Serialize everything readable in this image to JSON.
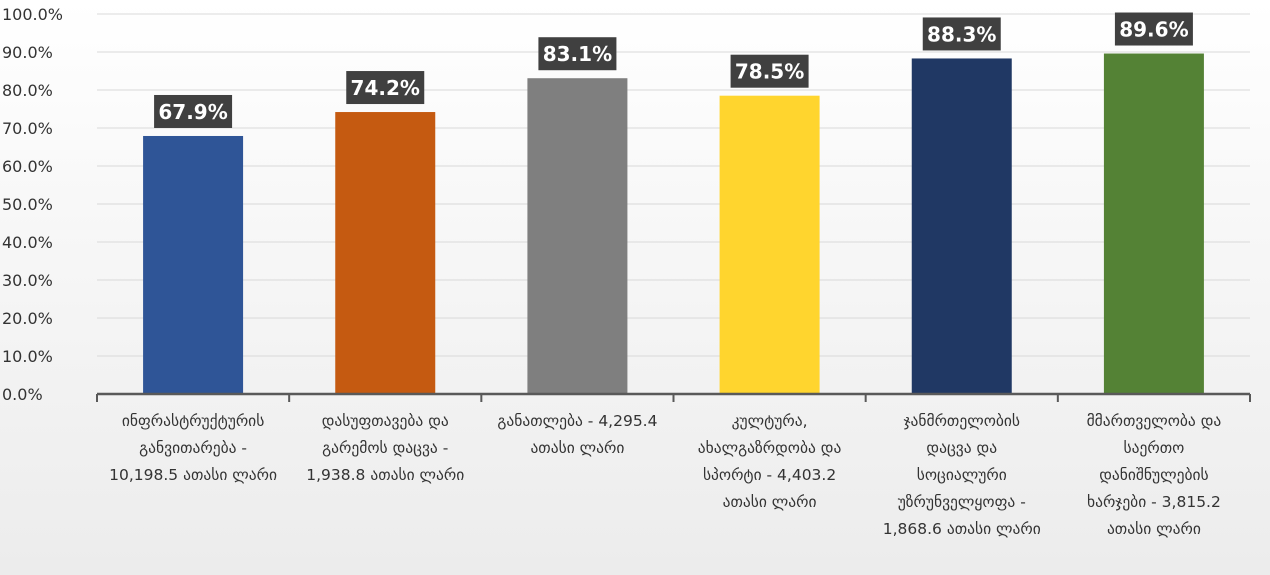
{
  "chart_data": {
    "type": "bar",
    "title": "",
    "xlabel": "",
    "ylabel": "",
    "ylim": [
      0,
      100
    ],
    "y_ticks": [
      "0.0%",
      "10.0%",
      "20.0%",
      "30.0%",
      "40.0%",
      "50.0%",
      "60.0%",
      "70.0%",
      "80.0%",
      "90.0%",
      "100.0%"
    ],
    "grid": true,
    "legend": "none",
    "categories": [
      [
        "ინფრასტრუქტურის",
        "განვითარება -",
        "10,198.5 ათასი ლარი"
      ],
      [
        "დასუფთავება  და",
        "გარემოს დაცვა -",
        "1,938.8 ათასი ლარი"
      ],
      [
        "განათლება - 4,295.4",
        "ათასი ლარი"
      ],
      [
        "კულტურა,",
        "ახალგაზრდობა და",
        "სპორტი - 4,403.2",
        "ათასი ლარი"
      ],
      [
        "ჯანმრთელობის",
        "დაცვა და",
        "სოციალური",
        "უზრუნველყოფა -",
        "1,868.6  ათასი ლარი"
      ],
      [
        "მმართველობა და",
        "საერთო",
        "დანიშნულების",
        "ხარჯები - 3,815.2",
        "ათასი ლარი"
      ]
    ],
    "values": [
      67.9,
      74.2,
      83.1,
      78.5,
      88.3,
      89.6
    ],
    "data_labels": [
      "67.9%",
      "74.2%",
      "83.1%",
      "78.5%",
      "88.3%",
      "89.6%"
    ],
    "bar_colors": [
      "#2F5597",
      "#C55A11",
      "#7F7F7F",
      "#FFD52E",
      "#203864",
      "#548235"
    ],
    "label_bg": "#404040",
    "grid_color": "#d9d9d9",
    "axis_color": "#595959"
  }
}
